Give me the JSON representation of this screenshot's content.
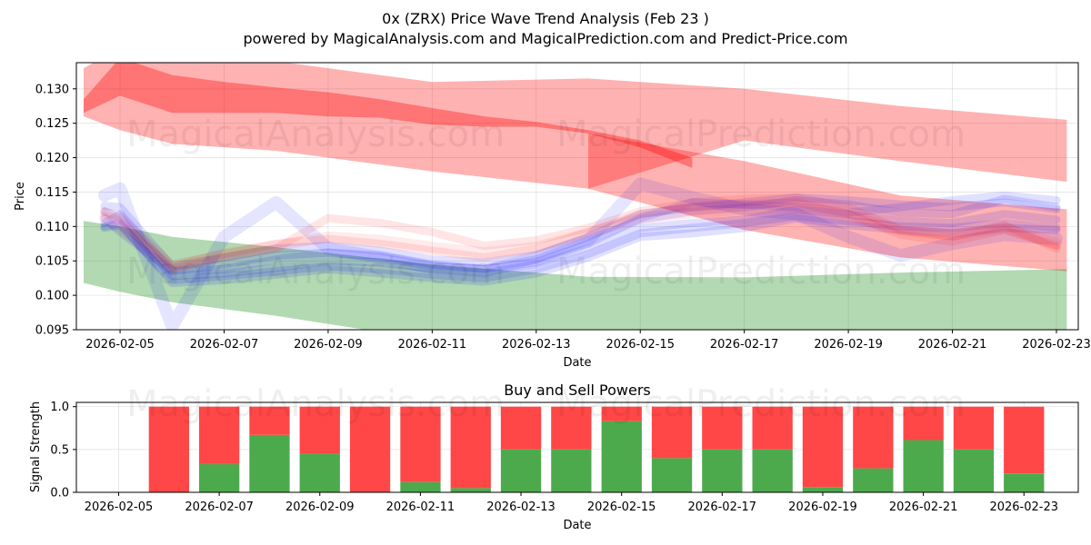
{
  "title": "0x (ZRX) Price Wave Trend Analysis (Feb 23 )",
  "subtitle": "powered by MagicalAnalysis.com and MagicalPrediction.com and Predict-Price.com",
  "watermarks": [
    "MagicalAnalysis.com",
    "MagicalPrediction.com"
  ],
  "colors": {
    "red": "#ff0000",
    "green": "#008000",
    "blue": "#0000ff",
    "buy": "#4caa4c",
    "sell": "#ff4747"
  },
  "chart_data": [
    {
      "type": "area",
      "title": "",
      "xlabel": "Date",
      "ylabel": "Price",
      "ylim": [
        0.095,
        0.1338
      ],
      "xlim_days": [
        -0.84,
        18.42
      ],
      "start_date": "2026-02-05",
      "x_ticks": [
        "2026-02-05",
        "2026-02-07",
        "2026-02-09",
        "2026-02-11",
        "2026-02-13",
        "2026-02-15",
        "2026-02-17",
        "2026-02-19",
        "2026-02-21",
        "2026-02-23"
      ],
      "y_ticks": [
        "0.095",
        "0.100",
        "0.105",
        "0.110",
        "0.115",
        "0.120",
        "0.125",
        "0.130"
      ],
      "bands": [
        {
          "name": "red-upper-wave",
          "color": "red",
          "opacity": 0.3,
          "x": [
            -0.7,
            0,
            1,
            3,
            6,
            9,
            12,
            15,
            18.2
          ],
          "upper": [
            0.133,
            0.136,
            0.135,
            0.134,
            0.131,
            0.1315,
            0.13,
            0.1275,
            0.1255
          ],
          "lower": [
            0.126,
            0.124,
            0.122,
            0.121,
            0.118,
            0.1155,
            0.1225,
            0.1195,
            0.1165
          ]
        },
        {
          "name": "red-core-wave",
          "color": "red",
          "opacity": 0.35,
          "x": [
            -0.7,
            0,
            1,
            2,
            3,
            4,
            5,
            6,
            7,
            8,
            9,
            10,
            11
          ],
          "upper": [
            0.1285,
            0.1345,
            0.132,
            0.131,
            0.1302,
            0.1295,
            0.1285,
            0.1272,
            0.126,
            0.1252,
            0.124,
            0.1225,
            0.12
          ],
          "lower": [
            0.1265,
            0.129,
            0.1265,
            0.1265,
            0.1265,
            0.126,
            0.1258,
            0.1248,
            0.1245,
            0.1245,
            0.1235,
            0.1215,
            0.1185
          ]
        },
        {
          "name": "red-lower-wave",
          "color": "red",
          "opacity": 0.3,
          "x": [
            9,
            12,
            15,
            18.2
          ],
          "upper": [
            0.1235,
            0.1195,
            0.1145,
            0.1125
          ],
          "lower": [
            0.1155,
            0.1095,
            0.1055,
            0.1035
          ]
        },
        {
          "name": "green-support-wave",
          "color": "green",
          "opacity": 0.3,
          "x": [
            -0.7,
            0,
            1,
            3,
            6,
            9,
            12,
            15,
            18.2
          ],
          "upper": [
            0.1108,
            0.11,
            0.1085,
            0.107,
            0.1045,
            0.1027,
            0.1026,
            0.1033,
            0.1038
          ],
          "lower": [
            0.1018,
            0.1005,
            0.099,
            0.097,
            0.0935,
            0.0935,
            0.0935,
            0.0935,
            0.0935
          ]
        }
      ],
      "projection_lines": [
        {
          "color": "blue",
          "opacity": 0.12,
          "width": 9,
          "x": [
            -0.3,
            0,
            1,
            2,
            3,
            4,
            5,
            6,
            7,
            8,
            9,
            10,
            11,
            12,
            13,
            14,
            15,
            16,
            17,
            18
          ],
          "y": [
            0.1105,
            0.1118,
            0.1035,
            0.1038,
            0.1052,
            0.1062,
            0.1058,
            0.1045,
            0.1038,
            0.1052,
            0.108,
            0.111,
            0.1122,
            0.1128,
            0.1138,
            0.1132,
            0.112,
            0.1118,
            0.114,
            0.1128
          ]
        },
        {
          "color": "blue",
          "opacity": 0.12,
          "width": 9,
          "x": [
            -0.3,
            0,
            1,
            2,
            3,
            4,
            5,
            6,
            7,
            8,
            9,
            10,
            11,
            12,
            13,
            14,
            15,
            16,
            17,
            18
          ],
          "y": [
            0.1122,
            0.1112,
            0.1028,
            0.1032,
            0.104,
            0.105,
            0.1048,
            0.1038,
            0.1032,
            0.1045,
            0.1068,
            0.1098,
            0.1105,
            0.111,
            0.1125,
            0.1118,
            0.1108,
            0.1105,
            0.1118,
            0.111
          ]
        },
        {
          "color": "blue",
          "opacity": 0.12,
          "width": 9,
          "x": [
            -0.3,
            0,
            1,
            2,
            3,
            4,
            5,
            6,
            7,
            8,
            9,
            10,
            11,
            12,
            13,
            14,
            15,
            16,
            17,
            18
          ],
          "y": [
            0.1098,
            0.1102,
            0.1022,
            0.1028,
            0.1035,
            0.1042,
            0.1038,
            0.103,
            0.1025,
            0.1038,
            0.106,
            0.109,
            0.1098,
            0.1105,
            0.1115,
            0.1108,
            0.11,
            0.1098,
            0.1105,
            0.1098
          ]
        },
        {
          "color": "blue",
          "opacity": 0.1,
          "width": 14,
          "x": [
            -0.3,
            0,
            1,
            2,
            3,
            4,
            5,
            6,
            7,
            8,
            9,
            10,
            11,
            12,
            13,
            14,
            15,
            16,
            17,
            18
          ],
          "y": [
            0.1145,
            0.1155,
            0.0955,
            0.1085,
            0.1135,
            0.1068,
            0.1055,
            0.104,
            0.1035,
            0.1055,
            0.108,
            0.1162,
            0.1142,
            0.1125,
            0.1118,
            0.1085,
            0.1058,
            0.1075,
            0.1088,
            0.1082
          ]
        },
        {
          "color": "blue",
          "opacity": 0.12,
          "width": 9,
          "x": [
            -0.3,
            0,
            1,
            2,
            3,
            4,
            5,
            6,
            7,
            8,
            9,
            10,
            11,
            12,
            13,
            14,
            15,
            16,
            17,
            18
          ],
          "y": [
            0.1112,
            0.1092,
            0.1035,
            0.1045,
            0.1058,
            0.1062,
            0.1055,
            0.1042,
            0.1038,
            0.1048,
            0.1075,
            0.1112,
            0.1135,
            0.1132,
            0.1128,
            0.112,
            0.1128,
            0.1138,
            0.1145,
            0.1138
          ]
        },
        {
          "color": "blue",
          "opacity": 0.12,
          "width": 9,
          "x": [
            -0.3,
            0,
            1,
            2,
            3,
            4,
            5,
            6,
            7,
            8,
            9,
            10,
            11,
            12,
            13,
            14,
            15,
            16,
            17,
            18
          ],
          "y": [
            0.11,
            0.1105,
            0.1018,
            0.1022,
            0.103,
            0.1038,
            0.1032,
            0.1025,
            0.102,
            0.1032,
            0.1055,
            0.1085,
            0.109,
            0.1098,
            0.1112,
            0.1102,
            0.1095,
            0.109,
            0.1098,
            0.1095
          ]
        },
        {
          "color": "blue",
          "opacity": 0.12,
          "width": 9,
          "x": [
            -0.3,
            0,
            1,
            2,
            3,
            4,
            5,
            6,
            7,
            8,
            9,
            10,
            11,
            12,
            13,
            14,
            15,
            16,
            17,
            18
          ],
          "y": [
            0.113,
            0.1128,
            0.1042,
            0.1055,
            0.1068,
            0.1072,
            0.1065,
            0.1052,
            0.1048,
            0.1058,
            0.1085,
            0.1118,
            0.1128,
            0.1135,
            0.1142,
            0.1138,
            0.1132,
            0.1128,
            0.1135,
            0.1125
          ]
        },
        {
          "color": "red",
          "opacity": 0.1,
          "width": 9,
          "x": [
            -0.3,
            0,
            1,
            2,
            3,
            4,
            5,
            6,
            7,
            8,
            9,
            10,
            11,
            12,
            13,
            14,
            15,
            16,
            17,
            18
          ],
          "y": [
            0.1122,
            0.1115,
            0.1045,
            0.106,
            0.1075,
            0.1082,
            0.1075,
            0.1065,
            0.1055,
            0.1068,
            0.1092,
            0.1118,
            0.1128,
            0.1132,
            0.1135,
            0.1118,
            0.1088,
            0.1078,
            0.1095,
            0.1072
          ]
        },
        {
          "color": "red",
          "opacity": 0.1,
          "width": 9,
          "x": [
            -0.3,
            0,
            1,
            2,
            3,
            4,
            5,
            6,
            7,
            8,
            9,
            10,
            11,
            12,
            13,
            14,
            15,
            16,
            17,
            18
          ],
          "y": [
            0.1118,
            0.1108,
            0.1038,
            0.1055,
            0.1068,
            0.1112,
            0.1105,
            0.1092,
            0.1072,
            0.108,
            0.1098,
            0.1122,
            0.1135,
            0.114,
            0.1142,
            0.1128,
            0.1095,
            0.1085,
            0.1102,
            0.1068
          ]
        },
        {
          "color": "red",
          "opacity": 0.08,
          "width": 12,
          "x": [
            -0.3,
            0,
            1,
            2,
            3,
            4,
            5,
            6,
            7,
            8,
            9,
            10,
            11,
            12,
            13,
            14,
            15,
            16,
            17,
            18
          ],
          "y": [
            0.1112,
            0.1098,
            0.104,
            0.106,
            0.1072,
            0.1085,
            0.108,
            0.107,
            0.1062,
            0.107,
            0.109,
            0.1112,
            0.112,
            0.1125,
            0.1128,
            0.1115,
            0.1095,
            0.1088,
            0.1098,
            0.1075
          ]
        }
      ]
    },
    {
      "type": "bar",
      "title": "Buy and Sell Powers",
      "xlabel": "Date",
      "ylabel": "Signal Strength",
      "ylim": [
        0,
        1.05
      ],
      "xlim_days": [
        -0.84,
        19.08
      ],
      "start_date": "2026-02-05",
      "x_ticks": [
        "2026-02-05",
        "2026-02-07",
        "2026-02-09",
        "2026-02-11",
        "2026-02-13",
        "2026-02-15",
        "2026-02-17",
        "2026-02-19",
        "2026-02-21",
        "2026-02-23"
      ],
      "y_ticks": [
        "0.0",
        "0.5",
        "1.0"
      ],
      "categories": [
        "2026-02-06",
        "2026-02-07",
        "2026-02-08",
        "2026-02-09",
        "2026-02-10",
        "2026-02-11",
        "2026-02-12",
        "2026-02-13",
        "2026-02-14",
        "2026-02-15",
        "2026-02-16",
        "2026-02-17",
        "2026-02-18",
        "2026-02-19",
        "2026-02-20",
        "2026-02-21",
        "2026-02-22",
        "2026-02-23"
      ],
      "series": [
        {
          "name": "Buy",
          "color": "buy",
          "values": [
            0.0,
            0.33,
            0.67,
            0.45,
            0.0,
            0.12,
            0.05,
            0.5,
            0.5,
            0.83,
            0.4,
            0.5,
            0.5,
            0.06,
            0.28,
            0.61,
            0.5,
            0.22
          ]
        },
        {
          "name": "Sell",
          "color": "sell",
          "values": [
            1.0,
            0.67,
            0.33,
            0.55,
            1.0,
            0.88,
            0.95,
            0.5,
            0.5,
            0.17,
            0.6,
            0.5,
            0.5,
            0.94,
            0.72,
            0.39,
            0.5,
            0.78
          ]
        }
      ]
    }
  ]
}
